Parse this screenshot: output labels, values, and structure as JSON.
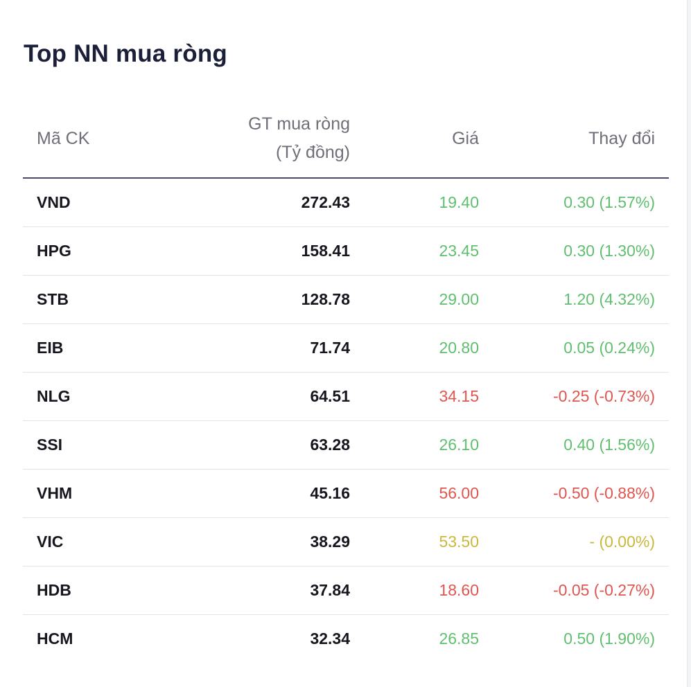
{
  "widget": {
    "title": "Top NN mua ròng"
  },
  "table": {
    "headers": {
      "code": "Mã CK",
      "value_line1": "GT mua ròng",
      "value_line2": "(Tỷ đồng)",
      "price": "Giá",
      "change": "Thay đổi"
    },
    "rows": [
      {
        "code": "VND",
        "value": "272.43",
        "price": "19.40",
        "change": "0.30 (1.57%)",
        "trend": "up"
      },
      {
        "code": "HPG",
        "value": "158.41",
        "price": "23.45",
        "change": "0.30 (1.30%)",
        "trend": "up"
      },
      {
        "code": "STB",
        "value": "128.78",
        "price": "29.00",
        "change": "1.20 (4.32%)",
        "trend": "up"
      },
      {
        "code": "EIB",
        "value": "71.74",
        "price": "20.80",
        "change": "0.05 (0.24%)",
        "trend": "up"
      },
      {
        "code": "NLG",
        "value": "64.51",
        "price": "34.15",
        "change": "-0.25 (-0.73%)",
        "trend": "down"
      },
      {
        "code": "SSI",
        "value": "63.28",
        "price": "26.10",
        "change": "0.40 (1.56%)",
        "trend": "up"
      },
      {
        "code": "VHM",
        "value": "45.16",
        "price": "56.00",
        "change": "-0.50 (-0.88%)",
        "trend": "down"
      },
      {
        "code": "VIC",
        "value": "38.29",
        "price": "53.50",
        "change": "- (0.00%)",
        "trend": "flat"
      },
      {
        "code": "HDB",
        "value": "37.84",
        "price": "18.60",
        "change": "-0.05 (-0.27%)",
        "trend": "down"
      },
      {
        "code": "HCM",
        "value": "32.34",
        "price": "26.85",
        "change": "0.50 (1.90%)",
        "trend": "up"
      }
    ]
  },
  "colors": {
    "up": "#5fbf6f",
    "down": "#e0554f",
    "flat": "#c9b83e",
    "title": "#1b1f38",
    "header_text": "#6e6e78",
    "header_rule": "#4a4a66",
    "row_rule": "#e3e3e6"
  }
}
